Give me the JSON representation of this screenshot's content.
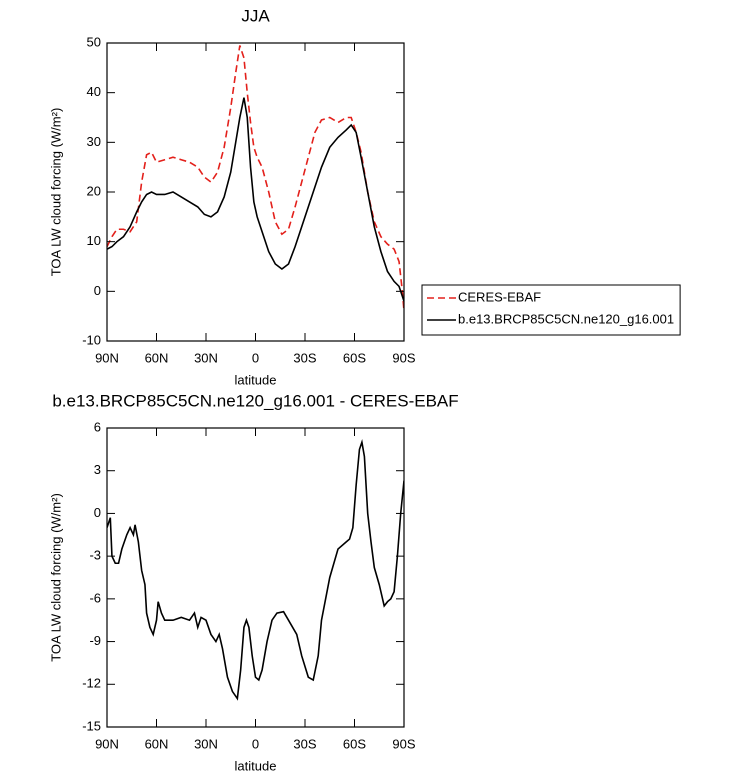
{
  "chart_data": [
    {
      "type": "line",
      "title": "JJA",
      "xlabel": "latitude",
      "ylabel": "TOA LW cloud forcing (W/m²)",
      "x": [
        90,
        87,
        84,
        80,
        76,
        72,
        69,
        66,
        63,
        60,
        55,
        50,
        45,
        40,
        35,
        31,
        27,
        23,
        19,
        15,
        12,
        9.5,
        7,
        5,
        3,
        1,
        -1,
        -4,
        -8,
        -12,
        -16,
        -20,
        -24,
        -28,
        -32,
        -36,
        -40,
        -45,
        -50,
        -55,
        -58,
        -61,
        -64,
        -68,
        -72,
        -76,
        -80,
        -84,
        -87,
        -89,
        -90
      ],
      "series": [
        {
          "name": "CERES-EBAF",
          "color": "#e3201b",
          "line_style": "dashed",
          "values": [
            9,
            11,
            12.5,
            12.5,
            12,
            14,
            22,
            27.5,
            28,
            26,
            26.5,
            27,
            26.5,
            26,
            25,
            23,
            22,
            24,
            29,
            37,
            44,
            49.5,
            47,
            40,
            34,
            29,
            27,
            25,
            20,
            14,
            11.5,
            12.5,
            17,
            22,
            27,
            32,
            34.5,
            35,
            34,
            35,
            35,
            32,
            28,
            20,
            14,
            11,
            9.5,
            8.5,
            6,
            0,
            -4
          ]
        },
        {
          "name": "b.e13.BRCP85C5CN.ne120_g16.001",
          "color": "#000000",
          "line_style": "solid",
          "values": [
            8.5,
            9,
            10,
            11,
            13,
            16,
            18,
            19.5,
            20,
            19.5,
            19.5,
            20,
            19,
            18,
            17,
            15.5,
            15,
            16,
            19,
            24,
            30,
            35,
            39,
            35,
            25,
            18,
            15,
            12,
            8,
            5.5,
            4.5,
            5.5,
            9,
            13,
            17,
            21,
            25,
            29,
            31,
            32.5,
            33.5,
            32,
            27,
            20,
            13,
            8,
            4,
            2,
            1,
            -1,
            -2
          ]
        }
      ],
      "xlim": [
        90,
        -90
      ],
      "ylim": [
        -10,
        50
      ],
      "xticks": [
        {
          "value": 90,
          "label": "90N"
        },
        {
          "value": 60,
          "label": "60N"
        },
        {
          "value": 30,
          "label": "30N"
        },
        0,
        {
          "value": -30,
          "label": "30S"
        },
        {
          "value": -60,
          "label": "60S"
        },
        {
          "value": -90,
          "label": "90S"
        }
      ],
      "yticks": [
        -10,
        0,
        10,
        20,
        30,
        40,
        50
      ],
      "legend": "right"
    },
    {
      "type": "line",
      "title": "b.e13.BRCP85C5CN.ne120_g16.001 - CERES-EBAF",
      "xlabel": "latitude",
      "ylabel": "TOA LW cloud forcing (W/m²)",
      "x": [
        90,
        88,
        87,
        85,
        83,
        81,
        78,
        76,
        74,
        73,
        71,
        69,
        67,
        66,
        64,
        62,
        60,
        59,
        57,
        55,
        50,
        45,
        40,
        37,
        35,
        33,
        30,
        27,
        24,
        22,
        20,
        17,
        14,
        11,
        9,
        7,
        5.5,
        4,
        2,
        0,
        -2,
        -4,
        -7,
        -10,
        -13,
        -17,
        -20,
        -25,
        -28,
        -32,
        -35,
        -38,
        -40,
        -45,
        -50,
        -55,
        -57,
        -59,
        -61,
        -63,
        -64.5,
        -66,
        -68,
        -70,
        -72,
        -75,
        -78,
        -80,
        -82,
        -84,
        -86,
        -88,
        -90
      ],
      "values": [
        -1,
        -0.3,
        -3,
        -3.5,
        -3.5,
        -2.5,
        -1.5,
        -1,
        -1.5,
        -0.8,
        -2,
        -4,
        -5,
        -7,
        -8,
        -8.5,
        -7.5,
        -6.2,
        -7,
        -7.5,
        -7.5,
        -7.3,
        -7.5,
        -7,
        -8,
        -7.3,
        -7.5,
        -8.5,
        -9,
        -8.5,
        -9.5,
        -11.5,
        -12.5,
        -13,
        -11,
        -8,
        -7.5,
        -8,
        -10,
        -11.5,
        -11.7,
        -11,
        -9,
        -7.5,
        -7,
        -6.9,
        -7.5,
        -8.5,
        -10,
        -11.5,
        -11.7,
        -10,
        -7.5,
        -4.5,
        -2.5,
        -2,
        -1.8,
        -1,
        2,
        4.5,
        5,
        4,
        0,
        -2,
        -3.8,
        -5,
        -6.5,
        -6.2,
        -6,
        -5.5,
        -3,
        0,
        2.3
      ],
      "color": "#000000",
      "line_style": "solid",
      "xlim": [
        90,
        -90
      ],
      "ylim": [
        -15,
        6
      ],
      "xticks": [
        {
          "value": 90,
          "label": "90N"
        },
        {
          "value": 60,
          "label": "60N"
        },
        {
          "value": 30,
          "label": "30N"
        },
        0,
        {
          "value": -30,
          "label": "30S"
        },
        {
          "value": -60,
          "label": "60S"
        },
        {
          "value": -90,
          "label": "90S"
        }
      ],
      "yticks": [
        -15,
        -12,
        -9,
        -6,
        -3,
        0,
        3,
        6
      ]
    }
  ]
}
